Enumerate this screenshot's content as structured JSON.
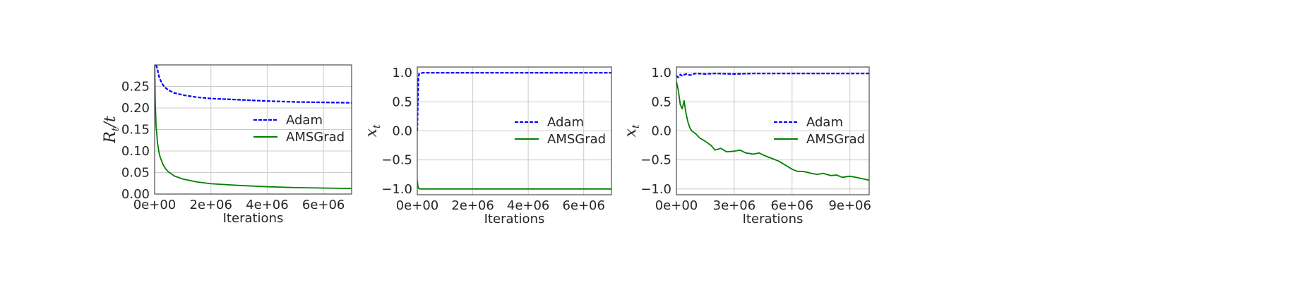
{
  "chart_data": [
    {
      "type": "line",
      "xlabel": "Iterations",
      "ylabel": {
        "main": "R",
        "sub": "t",
        "suffix": "/t"
      },
      "xlim": [
        0,
        7000000
      ],
      "ylim": [
        0,
        0.3
      ],
      "xticks": [
        0,
        2000000,
        4000000,
        6000000
      ],
      "xtick_labels": [
        "0e+00",
        "2e+06",
        "4e+06",
        "6e+06"
      ],
      "yticks": [
        0,
        0.05,
        0.1,
        0.15,
        0.2,
        0.25
      ],
      "ytick_labels": [
        "0.00",
        "0.05",
        "0.10",
        "0.15",
        "0.20",
        "0.25"
      ],
      "grid": true,
      "legend_position": "center-right",
      "series": [
        {
          "name": "Adam",
          "color": "#0000ff",
          "dashed": true,
          "x": [
            50000,
            100000,
            150000,
            200000,
            300000,
            400000,
            500000,
            700000,
            1000000,
            1500000,
            2000000,
            3000000,
            4000000,
            5000000,
            6000000,
            7000000
          ],
          "y": [
            0.3,
            0.29,
            0.274,
            0.265,
            0.253,
            0.246,
            0.241,
            0.235,
            0.23,
            0.225,
            0.222,
            0.219,
            0.216,
            0.214,
            0.213,
            0.212
          ]
        },
        {
          "name": "AMSGrad",
          "color": "#008000",
          "dashed": false,
          "x": [
            5000,
            20000,
            50000,
            100000,
            150000,
            200000,
            300000,
            400000,
            500000,
            700000,
            1000000,
            1500000,
            2000000,
            3000000,
            4000000,
            5000000,
            6000000,
            7000000
          ],
          "y": [
            0.3,
            0.22,
            0.16,
            0.12,
            0.098,
            0.085,
            0.068,
            0.058,
            0.051,
            0.042,
            0.035,
            0.028,
            0.024,
            0.02,
            0.017,
            0.015,
            0.014,
            0.013
          ]
        }
      ]
    },
    {
      "type": "line",
      "xlabel": "Iterations",
      "ylabel": {
        "main": "x",
        "sub": "t",
        "suffix": ""
      },
      "xlim": [
        0,
        7000000
      ],
      "ylim": [
        -1.1,
        1.1
      ],
      "xticks": [
        0,
        2000000,
        4000000,
        6000000
      ],
      "xtick_labels": [
        "0e+00",
        "2e+06",
        "4e+06",
        "6e+06"
      ],
      "yticks": [
        -1,
        -0.5,
        0,
        0.5,
        1
      ],
      "ytick_labels": [
        "−1.0",
        "−0.5",
        "0.0",
        "0.5",
        "1.0"
      ],
      "grid": true,
      "legend_position": "center-right",
      "series": [
        {
          "name": "Adam",
          "color": "#0000ff",
          "dashed": true,
          "x": [
            0,
            20000,
            40000,
            60000,
            100000,
            200000,
            1000000,
            3000000,
            5000000,
            7000000
          ],
          "y": [
            0.0,
            0.5,
            0.9,
            0.98,
            0.99,
            1.0,
            1.0,
            1.0,
            1.0,
            1.0
          ]
        },
        {
          "name": "AMSGrad",
          "color": "#008000",
          "dashed": false,
          "x": [
            0,
            20000,
            50000,
            100000,
            200000,
            1000000,
            3000000,
            5000000,
            7000000
          ],
          "y": [
            -0.85,
            -0.95,
            -0.99,
            -1.0,
            -1.0,
            -1.0,
            -1.0,
            -1.0,
            -1.0
          ]
        }
      ]
    },
    {
      "type": "line",
      "xlabel": "Iterations",
      "ylabel": {
        "main": "x",
        "sub": "t",
        "suffix": ""
      },
      "xlim": [
        0,
        10000000
      ],
      "ylim": [
        -1.1,
        1.1
      ],
      "xticks": [
        0,
        3000000,
        6000000,
        9000000
      ],
      "xtick_labels": [
        "0e+00",
        "3e+06",
        "6e+06",
        "9e+06"
      ],
      "yticks": [
        -1,
        -0.5,
        0,
        0.5,
        1
      ],
      "ytick_labels": [
        "−1.0",
        "−0.5",
        "0.0",
        "0.5",
        "1.0"
      ],
      "grid": true,
      "legend_position": "center-right",
      "series": [
        {
          "name": "Adam",
          "color": "#0000ff",
          "dashed": true,
          "x": [
            0,
            100000,
            200000,
            300000,
            500000,
            700000,
            1000000,
            1500000,
            2000000,
            3000000,
            4000000,
            5000000,
            6000000,
            7000000,
            8000000,
            9000000,
            10000000
          ],
          "y": [
            0.95,
            0.92,
            0.97,
            0.95,
            0.98,
            0.96,
            0.99,
            0.98,
            0.99,
            0.98,
            0.99,
            0.99,
            0.99,
            0.99,
            0.99,
            0.99,
            0.99
          ]
        },
        {
          "name": "AMSGrad",
          "color": "#008000",
          "dashed": false,
          "x": [
            0,
            100000,
            200000,
            300000,
            400000,
            500000,
            600000,
            700000,
            800000,
            1000000,
            1200000,
            1500000,
            1800000,
            2000000,
            2300000,
            2600000,
            3000000,
            3300000,
            3600000,
            4000000,
            4300000,
            4600000,
            5000000,
            5300000,
            5600000,
            6000000,
            6300000,
            6600000,
            7000000,
            7300000,
            7600000,
            8000000,
            8300000,
            8600000,
            9000000,
            9300000,
            9600000,
            10000000
          ],
          "y": [
            0.85,
            0.7,
            0.45,
            0.38,
            0.52,
            0.3,
            0.15,
            0.05,
            0.0,
            -0.05,
            -0.12,
            -0.18,
            -0.25,
            -0.33,
            -0.3,
            -0.36,
            -0.35,
            -0.33,
            -0.38,
            -0.4,
            -0.38,
            -0.43,
            -0.48,
            -0.52,
            -0.58,
            -0.66,
            -0.7,
            -0.7,
            -0.73,
            -0.75,
            -0.73,
            -0.77,
            -0.76,
            -0.8,
            -0.78,
            -0.8,
            -0.82,
            -0.85
          ]
        }
      ]
    }
  ]
}
